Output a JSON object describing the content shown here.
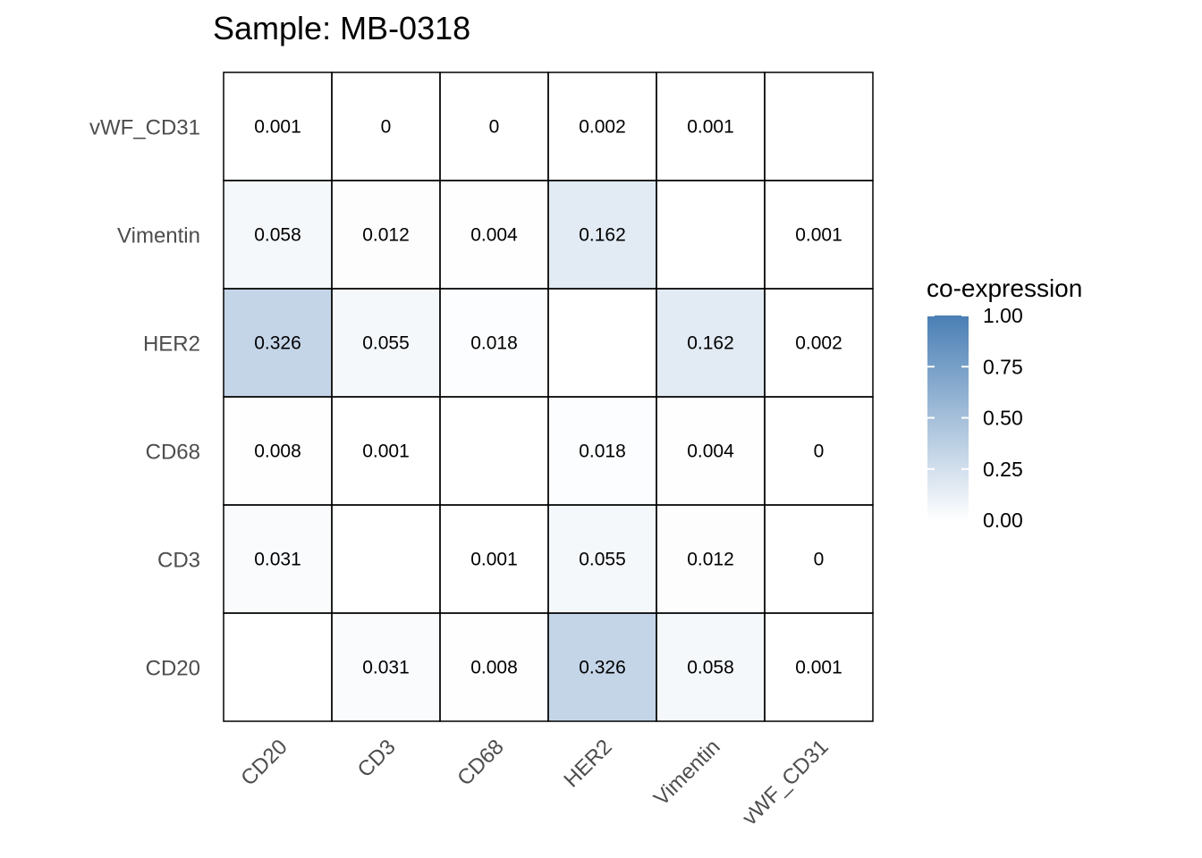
{
  "chart_data": {
    "type": "heatmap",
    "title": "Sample: MB-0318",
    "x_categories": [
      "CD20",
      "CD3",
      "CD68",
      "HER2",
      "Vimentin",
      "vWF_CD31"
    ],
    "y_categories_bottom_to_top": [
      "CD20",
      "CD3",
      "CD68",
      "HER2",
      "Vimentin",
      "vWF_CD31"
    ],
    "cells": [
      {
        "x": "CD20",
        "y": "vWF_CD31",
        "value": 0.001,
        "label": "0.001"
      },
      {
        "x": "CD3",
        "y": "vWF_CD31",
        "value": 0,
        "label": "0"
      },
      {
        "x": "CD68",
        "y": "vWF_CD31",
        "value": 0,
        "label": "0"
      },
      {
        "x": "HER2",
        "y": "vWF_CD31",
        "value": 0.002,
        "label": "0.002"
      },
      {
        "x": "Vimentin",
        "y": "vWF_CD31",
        "value": 0.001,
        "label": "0.001"
      },
      {
        "x": "CD20",
        "y": "Vimentin",
        "value": 0.058,
        "label": "0.058"
      },
      {
        "x": "CD3",
        "y": "Vimentin",
        "value": 0.012,
        "label": "0.012"
      },
      {
        "x": "CD68",
        "y": "Vimentin",
        "value": 0.004,
        "label": "0.004"
      },
      {
        "x": "HER2",
        "y": "Vimentin",
        "value": 0.162,
        "label": "0.162"
      },
      {
        "x": "vWF_CD31",
        "y": "Vimentin",
        "value": 0.001,
        "label": "0.001"
      },
      {
        "x": "CD20",
        "y": "HER2",
        "value": 0.326,
        "label": "0.326"
      },
      {
        "x": "CD3",
        "y": "HER2",
        "value": 0.055,
        "label": "0.055"
      },
      {
        "x": "CD68",
        "y": "HER2",
        "value": 0.018,
        "label": "0.018"
      },
      {
        "x": "Vimentin",
        "y": "HER2",
        "value": 0.162,
        "label": "0.162"
      },
      {
        "x": "vWF_CD31",
        "y": "HER2",
        "value": 0.002,
        "label": "0.002"
      },
      {
        "x": "CD20",
        "y": "CD68",
        "value": 0.008,
        "label": "0.008"
      },
      {
        "x": "CD3",
        "y": "CD68",
        "value": 0.001,
        "label": "0.001"
      },
      {
        "x": "HER2",
        "y": "CD68",
        "value": 0.018,
        "label": "0.018"
      },
      {
        "x": "Vimentin",
        "y": "CD68",
        "value": 0.004,
        "label": "0.004"
      },
      {
        "x": "vWF_CD31",
        "y": "CD68",
        "value": 0,
        "label": "0"
      },
      {
        "x": "CD20",
        "y": "CD3",
        "value": 0.031,
        "label": "0.031"
      },
      {
        "x": "CD68",
        "y": "CD3",
        "value": 0.001,
        "label": "0.001"
      },
      {
        "x": "HER2",
        "y": "CD3",
        "value": 0.055,
        "label": "0.055"
      },
      {
        "x": "Vimentin",
        "y": "CD3",
        "value": 0.012,
        "label": "0.012"
      },
      {
        "x": "vWF_CD31",
        "y": "CD3",
        "value": 0,
        "label": "0"
      },
      {
        "x": "CD3",
        "y": "CD20",
        "value": 0.031,
        "label": "0.031"
      },
      {
        "x": "CD68",
        "y": "CD20",
        "value": 0.008,
        "label": "0.008"
      },
      {
        "x": "HER2",
        "y": "CD20",
        "value": 0.326,
        "label": "0.326"
      },
      {
        "x": "Vimentin",
        "y": "CD20",
        "value": 0.058,
        "label": "0.058"
      },
      {
        "x": "vWF_CD31",
        "y": "CD20",
        "value": 0.001,
        "label": "0.001"
      }
    ],
    "legend": {
      "title": "co-expression",
      "range": [
        0,
        1
      ],
      "ticks": [
        "0.00",
        "0.25",
        "0.50",
        "0.75",
        "1.00"
      ],
      "tick_values": [
        0,
        0.25,
        0.5,
        0.75,
        1.0
      ],
      "low_color": "#ffffff",
      "high_color": "#4a7fb5",
      "placement": "right"
    },
    "grid": false
  }
}
